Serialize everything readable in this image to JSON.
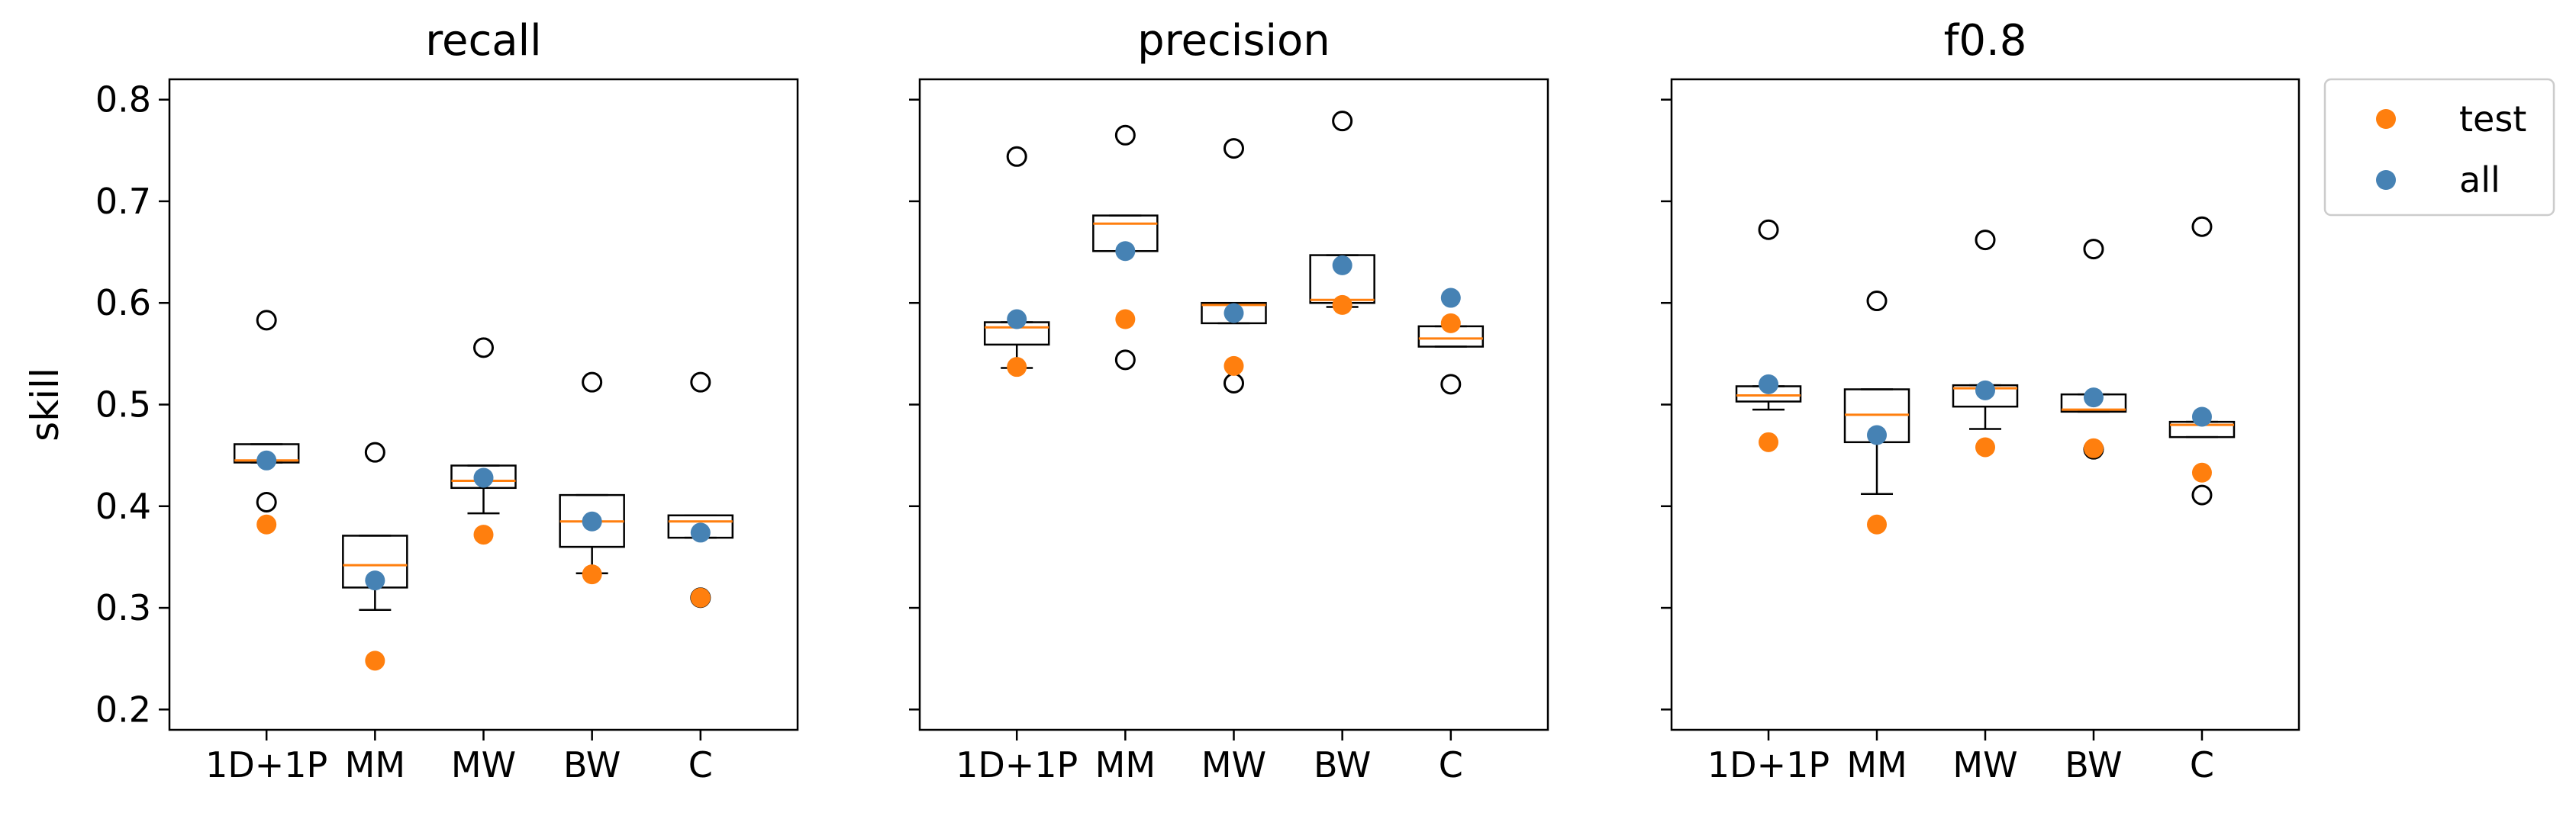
{
  "chart_data": {
    "type": "box",
    "ylabel": "skill",
    "ylim": [
      0.18,
      0.82
    ],
    "yticks": [
      0.2,
      0.3,
      0.4,
      0.5,
      0.6,
      0.7,
      0.8
    ],
    "ytick_labels": [
      "0.2",
      "0.3",
      "0.4",
      "0.5",
      "0.6",
      "0.7",
      "0.8"
    ],
    "categories": [
      "1D+1P",
      "MM",
      "MW",
      "BW",
      "C"
    ],
    "legend": {
      "placement": "outside-top-right",
      "entries": [
        {
          "label": "test",
          "color": "#ff7f0e"
        },
        {
          "label": "all",
          "color": "#4682b4"
        }
      ]
    },
    "colors": {
      "test": "#ff7f0e",
      "all": "#4682b4",
      "median": "#ff7f0e",
      "box": "#000000"
    },
    "panels": [
      {
        "title": "recall",
        "boxes": [
          {
            "category": "1D+1P",
            "q1": 0.443,
            "median": 0.445,
            "q3": 0.461,
            "whislo": 0.443,
            "whishi": 0.461,
            "fliers": [
              0.583,
              0.404
            ],
            "test": 0.382,
            "all": 0.445
          },
          {
            "category": "MM",
            "q1": 0.32,
            "median": 0.342,
            "q3": 0.371,
            "whislo": 0.298,
            "whishi": 0.371,
            "fliers": [
              0.453
            ],
            "test": 0.248,
            "all": 0.327
          },
          {
            "category": "MW",
            "q1": 0.418,
            "median": 0.425,
            "q3": 0.44,
            "whislo": 0.393,
            "whishi": 0.44,
            "fliers": [
              0.556
            ],
            "test": 0.372,
            "all": 0.428
          },
          {
            "category": "BW",
            "q1": 0.36,
            "median": 0.385,
            "q3": 0.411,
            "whislo": 0.334,
            "whishi": 0.411,
            "fliers": [
              0.522
            ],
            "test": 0.333,
            "all": 0.385
          },
          {
            "category": "C",
            "q1": 0.369,
            "median": 0.385,
            "q3": 0.391,
            "whislo": 0.369,
            "whishi": 0.391,
            "fliers": [
              0.522,
              0.31
            ],
            "test": 0.31,
            "all": 0.374
          }
        ]
      },
      {
        "title": "precision",
        "boxes": [
          {
            "category": "1D+1P",
            "q1": 0.559,
            "median": 0.576,
            "q3": 0.581,
            "whislo": 0.536,
            "whishi": 0.581,
            "fliers": [
              0.744
            ],
            "test": 0.537,
            "all": 0.584
          },
          {
            "category": "MM",
            "q1": 0.651,
            "median": 0.678,
            "q3": 0.686,
            "whislo": 0.651,
            "whishi": 0.686,
            "fliers": [
              0.765,
              0.544
            ],
            "test": 0.584,
            "all": 0.651
          },
          {
            "category": "MW",
            "q1": 0.58,
            "median": 0.598,
            "q3": 0.6,
            "whislo": 0.58,
            "whishi": 0.6,
            "fliers": [
              0.752,
              0.521
            ],
            "test": 0.538,
            "all": 0.59
          },
          {
            "category": "BW",
            "q1": 0.6,
            "median": 0.603,
            "q3": 0.647,
            "whislo": 0.596,
            "whishi": 0.647,
            "fliers": [
              0.779
            ],
            "test": 0.598,
            "all": 0.637
          },
          {
            "category": "C",
            "q1": 0.557,
            "median": 0.565,
            "q3": 0.577,
            "whislo": 0.557,
            "whishi": 0.577,
            "fliers": [
              0.52
            ],
            "test": 0.58,
            "all": 0.605
          }
        ]
      },
      {
        "title": "f0.8",
        "boxes": [
          {
            "category": "1D+1P",
            "q1": 0.503,
            "median": 0.509,
            "q3": 0.518,
            "whislo": 0.495,
            "whishi": 0.518,
            "fliers": [
              0.672
            ],
            "test": 0.463,
            "all": 0.52
          },
          {
            "category": "MM",
            "q1": 0.463,
            "median": 0.49,
            "q3": 0.515,
            "whislo": 0.412,
            "whishi": 0.515,
            "fliers": [
              0.602
            ],
            "test": 0.382,
            "all": 0.47
          },
          {
            "category": "MW",
            "q1": 0.498,
            "median": 0.516,
            "q3": 0.519,
            "whislo": 0.476,
            "whishi": 0.519,
            "fliers": [
              0.662
            ],
            "test": 0.458,
            "all": 0.514
          },
          {
            "category": "BW",
            "q1": 0.493,
            "median": 0.495,
            "q3": 0.51,
            "whislo": 0.493,
            "whishi": 0.51,
            "fliers": [
              0.653,
              0.456
            ],
            "test": 0.457,
            "all": 0.507
          },
          {
            "category": "C",
            "q1": 0.468,
            "median": 0.48,
            "q3": 0.483,
            "whislo": 0.468,
            "whishi": 0.483,
            "fliers": [
              0.675,
              0.411
            ],
            "test": 0.433,
            "all": 0.488
          }
        ]
      }
    ]
  }
}
